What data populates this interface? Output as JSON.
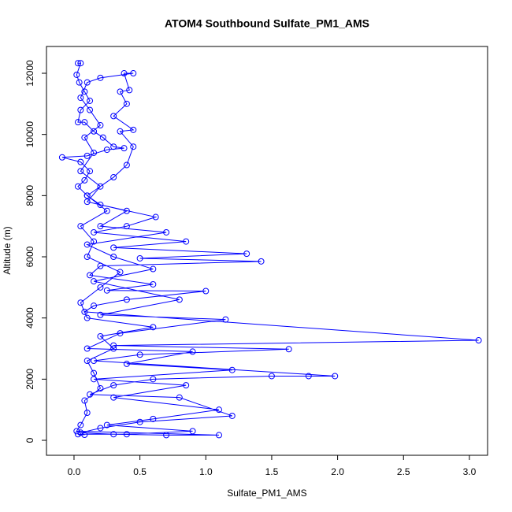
{
  "chart_data": {
    "type": "line",
    "title": "ATOM4 Southbound Sulfate_PM1_AMS",
    "x_label": "Sulfate_PM1_AMS",
    "y_label": "Altitude (m)",
    "xlim": [
      -0.209,
      3.138
    ],
    "ylim": [
      -489,
      12876
    ],
    "xticks": [
      {
        "value": 0,
        "label": "0.0"
      },
      0.5,
      {
        "value": 1,
        "label": "1.0"
      },
      1.5,
      {
        "value": 2,
        "label": "2.0"
      },
      2.5,
      {
        "value": 3,
        "label": "3.0"
      }
    ],
    "yticks": [
      0,
      2000,
      4000,
      6000,
      8000,
      10000,
      12000
    ],
    "markers": true,
    "series": [
      {
        "color": "#0000ff",
        "x": [
          0.03,
          0.05,
          0.02,
          0.04,
          0.08,
          0.12,
          0.05,
          0.03,
          0.08,
          0.15,
          0.22,
          0.3,
          0.38,
          0.25,
          0.1,
          -0.09,
          0.05,
          0.12,
          0.08,
          0.03,
          0.1,
          0.2,
          0.62,
          0.4,
          0.15,
          0.85,
          0.3,
          1.31,
          0.5,
          1.42,
          0.2,
          0.12,
          0.6,
          0.25,
          1.0,
          0.4,
          0.15,
          0.08,
          3.07,
          0.3,
          1.63,
          0.5,
          0.15,
          1.98,
          1.78,
          1.5,
          0.6,
          0.3,
          0.12,
          0.8,
          1.2,
          0.5,
          0.2,
          0.05,
          0.3,
          0.7,
          1.1,
          0.02,
          0.05,
          0.1,
          0.08,
          0.2,
          0.15,
          0.1,
          0.3,
          0.2,
          0.6,
          0.1,
          0.05,
          0.2,
          0.35,
          0.1,
          0.15,
          0.05,
          0.25,
          0.1,
          0.3,
          0.4,
          0.45,
          0.35,
          0.45,
          0.3,
          0.4,
          0.35,
          0.42,
          0.38,
          0.45,
          0.2,
          0.1,
          0.05,
          0.12,
          0.2,
          0.08,
          0.15,
          0.05,
          0.2,
          0.1,
          0.4,
          0.2,
          0.7,
          0.1,
          0.3,
          0.6,
          0.15,
          0.8,
          0.2,
          1.15,
          0.35,
          0.1,
          0.9,
          0.4,
          1.2,
          0.15,
          0.85,
          0.3,
          1.1,
          0.6,
          0.25,
          0.9,
          0.4,
          0.03,
          0.08
        ],
        "values": [
          12330,
          12330,
          11950,
          11700,
          11400,
          11100,
          10800,
          10400,
          10400,
          10100,
          9900,
          9600,
          9550,
          9500,
          9300,
          9250,
          9100,
          8800,
          8500,
          8300,
          8000,
          7700,
          7300,
          7000,
          6800,
          6500,
          6300,
          6100,
          5950,
          5850,
          5700,
          5400,
          5100,
          4900,
          4880,
          4600,
          4400,
          4200,
          3270,
          3100,
          2980,
          2800,
          2600,
          2100,
          2100,
          2100,
          2000,
          1800,
          1500,
          1400,
          800,
          600,
          400,
          250,
          200,
          170,
          170,
          300,
          500,
          900,
          1300,
          1700,
          2200,
          2600,
          3000,
          3400,
          3700,
          4000,
          4500,
          5000,
          5500,
          6000,
          6500,
          7000,
          7500,
          8000,
          8600,
          9000,
          9600,
          10100,
          10150,
          10600,
          11000,
          11400,
          11450,
          12000,
          12000,
          11850,
          11700,
          11200,
          10800,
          10300,
          9900,
          9400,
          8800,
          8300,
          7800,
          7500,
          7000,
          6800,
          6400,
          6000,
          5600,
          5200,
          4600,
          4100,
          3950,
          3500,
          3000,
          2900,
          2500,
          2300,
          2000,
          1800,
          1400,
          1000,
          700,
          500,
          300,
          200,
          200,
          180
        ]
      }
    ]
  }
}
